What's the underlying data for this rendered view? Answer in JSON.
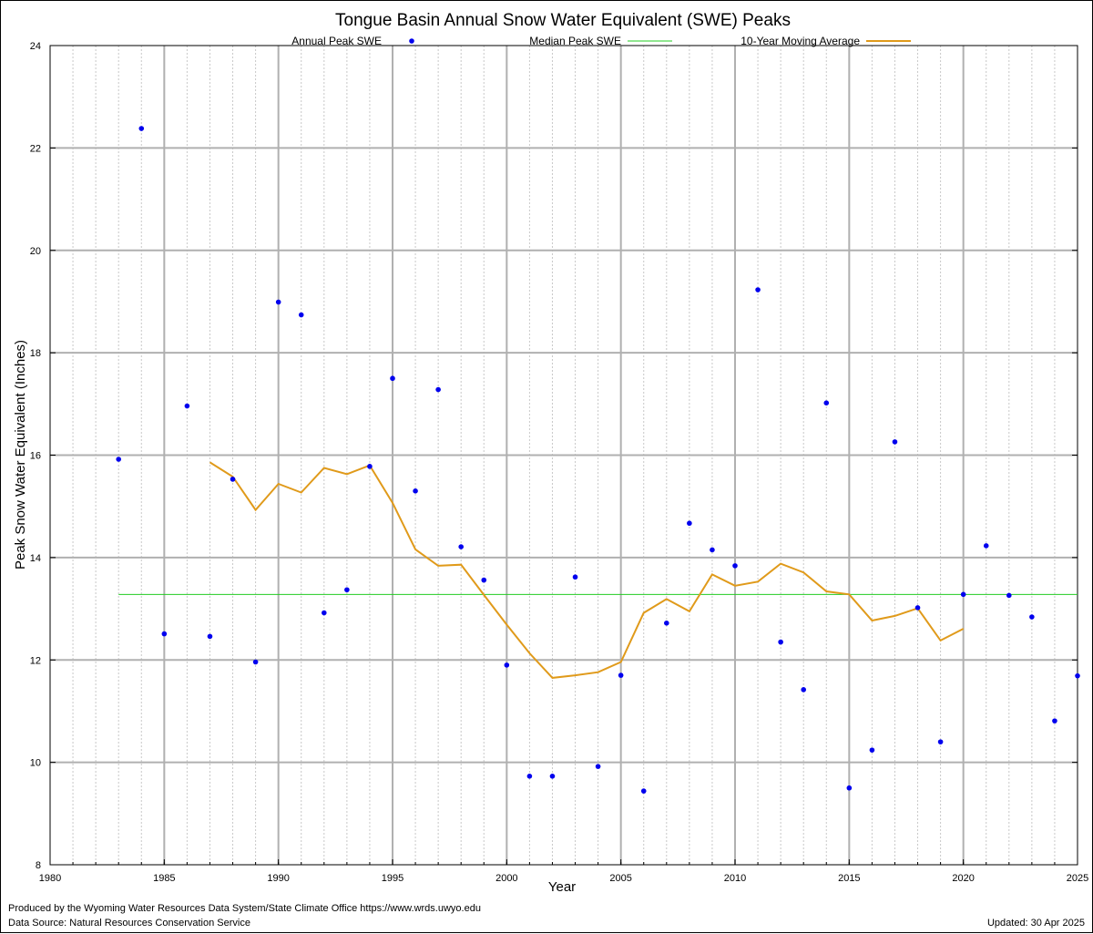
{
  "chart_data": {
    "type": "scatter",
    "title": "Tongue Basin Annual Snow Water Equivalent (SWE) Peaks",
    "xlabel": "Year",
    "ylabel": "Peak Snow Water Equivalent (Inches)",
    "xlim": [
      1980,
      2025
    ],
    "ylim": [
      8,
      24
    ],
    "xticks": [
      "1980",
      "1985",
      "1990",
      "1995",
      "2000",
      "2005",
      "2010",
      "2015",
      "2020",
      "2025"
    ],
    "yticks": [
      "8",
      "10",
      "12",
      "14",
      "16",
      "18",
      "20",
      "22",
      "24"
    ],
    "grid": true,
    "legend_position": "top",
    "colors": {
      "annual_peak": "#0000ee",
      "median": "#22cc22",
      "moving_average": "#e09a1a",
      "grid_major": "#b0b0b0",
      "grid_minor": "#c8c8c8"
    },
    "series": [
      {
        "name": "Annual Peak SWE",
        "kind": "points",
        "x": [
          1983,
          1984,
          1985,
          1986,
          1987,
          1988,
          1989,
          1990,
          1991,
          1992,
          1993,
          1994,
          1995,
          1996,
          1997,
          1998,
          1999,
          2000,
          2001,
          2002,
          2003,
          2004,
          2005,
          2006,
          2007,
          2008,
          2009,
          2010,
          2011,
          2012,
          2013,
          2014,
          2015,
          2016,
          2017,
          2018,
          2019,
          2020,
          2021,
          2022,
          2023,
          2024,
          2025
        ],
        "y": [
          15.92,
          22.38,
          12.51,
          16.96,
          12.46,
          15.53,
          11.96,
          18.99,
          18.74,
          12.92,
          13.37,
          15.78,
          17.5,
          15.3,
          17.28,
          14.21,
          13.56,
          11.9,
          9.73,
          9.73,
          13.62,
          9.92,
          11.7,
          9.44,
          12.72,
          14.67,
          14.15,
          13.84,
          19.23,
          12.35,
          11.42,
          17.02,
          9.5,
          10.24,
          16.26,
          13.02,
          10.4,
          13.28,
          14.23,
          13.26,
          12.84,
          10.81,
          11.69
        ]
      },
      {
        "name": "Median Peak SWE",
        "kind": "hline",
        "x": [
          1983,
          2025
        ],
        "y": [
          13.28,
          13.28
        ]
      },
      {
        "name": "10-Year Moving Average",
        "kind": "line",
        "x": [
          1987,
          1988,
          1989,
          1990,
          1991,
          1992,
          1993,
          1994,
          1995,
          1996,
          1997,
          1998,
          1999,
          2000,
          2001,
          2002,
          2003,
          2004,
          2005,
          2006,
          2007,
          2008,
          2009,
          2010,
          2011,
          2012,
          2013,
          2014,
          2015,
          2016,
          2017,
          2018,
          2019,
          2020
        ],
        "y": [
          15.86,
          15.58,
          14.93,
          15.44,
          15.27,
          15.75,
          15.63,
          15.8,
          15.07,
          14.16,
          13.84,
          13.86,
          13.27,
          12.69,
          12.13,
          11.65,
          11.7,
          11.76,
          11.96,
          12.92,
          13.19,
          12.95,
          13.67,
          13.45,
          13.53,
          13.88,
          13.71,
          13.34,
          13.28,
          12.77,
          12.86,
          13.01,
          12.38,
          12.61
        ]
      }
    ]
  },
  "footer": {
    "produced_by": "Produced by the Wyoming Water Resources Data System/State Climate Office https://www.wrds.uwyo.edu",
    "data_source": "Data Source: Natural Resources Conservation Service",
    "updated": "Updated: 30 Apr 2025"
  }
}
